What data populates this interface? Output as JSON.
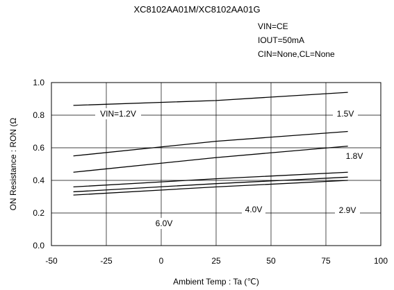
{
  "chart_data": {
    "type": "line",
    "title": "XC8102AA01M/XC8102AA01G",
    "conditions": [
      "VIN=CE",
      "IOUT=50mA",
      "CIN=None,CL=None"
    ],
    "xlabel": "Ambient Temp : Ta (℃)",
    "ylabel": "ON Resistance : RON (Ω",
    "xlim": [
      -50,
      100
    ],
    "ylim": [
      0.0,
      1.0
    ],
    "xticks": [
      -50,
      -25,
      0,
      25,
      50,
      75,
      100
    ],
    "xtick_labels": [
      "-50",
      "-25",
      "0",
      "25",
      "50",
      "75",
      "100"
    ],
    "yticks": [
      0.0,
      0.2,
      0.4,
      0.6,
      0.8,
      1.0
    ],
    "ytick_labels": [
      "0.0",
      "0.2",
      "0.4",
      "0.6",
      "0.8",
      "1.0"
    ],
    "grid": true,
    "series": [
      {
        "name": "VIN=1.2V",
        "x": [
          -40,
          25,
          85
        ],
        "values": [
          0.86,
          0.89,
          0.94
        ]
      },
      {
        "name": "1.5V",
        "x": [
          -40,
          25,
          85
        ],
        "values": [
          0.55,
          0.64,
          0.7
        ]
      },
      {
        "name": "1.8V",
        "x": [
          -40,
          25,
          85
        ],
        "values": [
          0.45,
          0.54,
          0.61
        ]
      },
      {
        "name": "2.9V",
        "x": [
          -40,
          25,
          85
        ],
        "values": [
          0.36,
          0.41,
          0.45
        ]
      },
      {
        "name": "4.0V",
        "x": [
          -40,
          25,
          85
        ],
        "values": [
          0.33,
          0.38,
          0.42
        ]
      },
      {
        "name": "6.0V",
        "x": [
          -40,
          25,
          85
        ],
        "values": [
          0.31,
          0.36,
          0.4
        ]
      }
    ],
    "labels": [
      "VIN=1.2V",
      "1.5V",
      "1.8V",
      "2.9V",
      "4.0V",
      "6.0V"
    ]
  }
}
